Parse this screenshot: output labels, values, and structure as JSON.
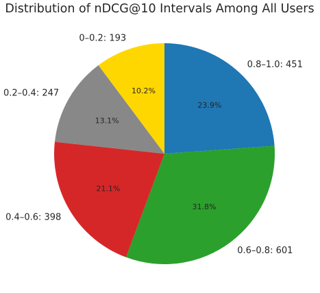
{
  "chart_data": {
    "type": "pie",
    "title": "Distribution of nDCG@10 Intervals Among All Users",
    "slices": [
      {
        "category": "0.8–1.0",
        "count": 451,
        "percent": "23.9%",
        "color": "#1f77b4"
      },
      {
        "category": "0.6–0.8",
        "count": 601,
        "percent": "31.8%",
        "color": "#2ca02c"
      },
      {
        "category": "0.4–0.6",
        "count": 398,
        "percent": "21.1%",
        "color": "#d62728"
      },
      {
        "category": "0.2–0.4",
        "count": 247,
        "percent": "13.1%",
        "color": "#888888"
      },
      {
        "category": "0–0.2",
        "count": 193,
        "percent": "10.2%",
        "color": "#ffd700"
      }
    ],
    "start_angle_deg": 90,
    "direction": "clockwise",
    "legend": "none",
    "grid": false
  }
}
